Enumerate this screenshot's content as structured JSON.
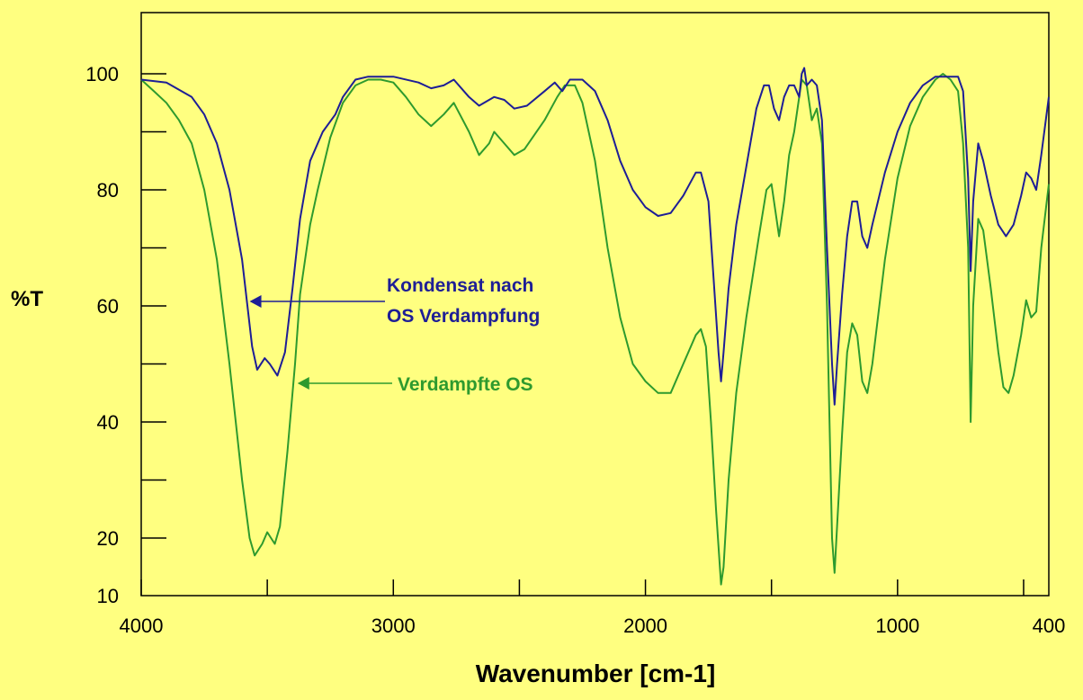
{
  "chart_data": {
    "type": "line",
    "xlabel": "Wavenumber [cm-1]",
    "ylabel": "%T",
    "xlim": [
      4000,
      400
    ],
    "ylim": [
      10,
      110
    ],
    "x_reversed": true,
    "x_ticks": [
      4000,
      3000,
      2000,
      1000,
      400
    ],
    "y_ticks": [
      100,
      80,
      60,
      40,
      20,
      10
    ],
    "grid": false,
    "background_color": "#FFFF80",
    "series": [
      {
        "name": "Kondensat nach OS Verdampfung",
        "color": "#1E1E96",
        "points": [
          [
            4000,
            99
          ],
          [
            3900,
            98.5
          ],
          [
            3800,
            96
          ],
          [
            3750,
            93
          ],
          [
            3700,
            88
          ],
          [
            3650,
            80
          ],
          [
            3600,
            68
          ],
          [
            3560,
            53
          ],
          [
            3540,
            49
          ],
          [
            3510,
            51
          ],
          [
            3490,
            50
          ],
          [
            3460,
            48
          ],
          [
            3430,
            52
          ],
          [
            3400,
            63
          ],
          [
            3370,
            75
          ],
          [
            3330,
            85
          ],
          [
            3280,
            90
          ],
          [
            3230,
            93
          ],
          [
            3200,
            96
          ],
          [
            3150,
            99
          ],
          [
            3100,
            99.5
          ],
          [
            3000,
            99.5
          ],
          [
            2900,
            98.5
          ],
          [
            2850,
            97.5
          ],
          [
            2800,
            98
          ],
          [
            2760,
            99
          ],
          [
            2700,
            96
          ],
          [
            2660,
            94.5
          ],
          [
            2600,
            96
          ],
          [
            2560,
            95.5
          ],
          [
            2520,
            94
          ],
          [
            2470,
            94.5
          ],
          [
            2400,
            97
          ],
          [
            2360,
            98.5
          ],
          [
            2330,
            97
          ],
          [
            2300,
            99
          ],
          [
            2250,
            99
          ],
          [
            2200,
            97
          ],
          [
            2150,
            92
          ],
          [
            2100,
            85
          ],
          [
            2050,
            80
          ],
          [
            2000,
            77
          ],
          [
            1950,
            75.5
          ],
          [
            1900,
            76
          ],
          [
            1850,
            79
          ],
          [
            1800,
            83
          ],
          [
            1780,
            83
          ],
          [
            1750,
            78
          ],
          [
            1730,
            65
          ],
          [
            1710,
            52
          ],
          [
            1700,
            47
          ],
          [
            1690,
            52
          ],
          [
            1670,
            63
          ],
          [
            1640,
            74
          ],
          [
            1600,
            84
          ],
          [
            1560,
            94
          ],
          [
            1530,
            98
          ],
          [
            1510,
            98
          ],
          [
            1490,
            94
          ],
          [
            1470,
            92
          ],
          [
            1450,
            96
          ],
          [
            1430,
            98
          ],
          [
            1410,
            98
          ],
          [
            1390,
            96
          ],
          [
            1380,
            100
          ],
          [
            1370,
            101
          ],
          [
            1360,
            98
          ],
          [
            1340,
            99
          ],
          [
            1320,
            98
          ],
          [
            1300,
            92
          ],
          [
            1280,
            70
          ],
          [
            1260,
            50
          ],
          [
            1250,
            43
          ],
          [
            1240,
            50
          ],
          [
            1220,
            62
          ],
          [
            1200,
            72
          ],
          [
            1180,
            78
          ],
          [
            1160,
            78
          ],
          [
            1140,
            72
          ],
          [
            1120,
            70
          ],
          [
            1100,
            74
          ],
          [
            1050,
            83
          ],
          [
            1000,
            90
          ],
          [
            950,
            95
          ],
          [
            900,
            98
          ],
          [
            850,
            99.5
          ],
          [
            800,
            99.5
          ],
          [
            760,
            99.5
          ],
          [
            740,
            97
          ],
          [
            720,
            82
          ],
          [
            710,
            66
          ],
          [
            700,
            78
          ],
          [
            680,
            88
          ],
          [
            660,
            85
          ],
          [
            630,
            79
          ],
          [
            600,
            74
          ],
          [
            570,
            72
          ],
          [
            540,
            74
          ],
          [
            510,
            79
          ],
          [
            490,
            83
          ],
          [
            470,
            82
          ],
          [
            450,
            80
          ],
          [
            430,
            86
          ],
          [
            400,
            96
          ]
        ]
      },
      {
        "name": "Verdampfte OS",
        "color": "#2E9A2E",
        "points": [
          [
            4000,
            99
          ],
          [
            3950,
            97
          ],
          [
            3900,
            95
          ],
          [
            3850,
            92
          ],
          [
            3800,
            88
          ],
          [
            3750,
            80
          ],
          [
            3700,
            68
          ],
          [
            3650,
            50
          ],
          [
            3600,
            30
          ],
          [
            3570,
            20
          ],
          [
            3550,
            17
          ],
          [
            3520,
            19
          ],
          [
            3500,
            21
          ],
          [
            3470,
            19
          ],
          [
            3450,
            22
          ],
          [
            3420,
            35
          ],
          [
            3390,
            50
          ],
          [
            3370,
            62
          ],
          [
            3330,
            74
          ],
          [
            3300,
            80
          ],
          [
            3250,
            89
          ],
          [
            3200,
            95
          ],
          [
            3150,
            98
          ],
          [
            3100,
            99
          ],
          [
            3050,
            99
          ],
          [
            3000,
            98.5
          ],
          [
            2950,
            96
          ],
          [
            2900,
            93
          ],
          [
            2850,
            91
          ],
          [
            2800,
            93
          ],
          [
            2760,
            95
          ],
          [
            2700,
            90
          ],
          [
            2660,
            86
          ],
          [
            2620,
            88
          ],
          [
            2600,
            90
          ],
          [
            2560,
            88
          ],
          [
            2520,
            86
          ],
          [
            2480,
            87
          ],
          [
            2400,
            92
          ],
          [
            2350,
            96
          ],
          [
            2320,
            98
          ],
          [
            2280,
            98
          ],
          [
            2250,
            95
          ],
          [
            2200,
            85
          ],
          [
            2150,
            70
          ],
          [
            2100,
            58
          ],
          [
            2050,
            50
          ],
          [
            2000,
            47
          ],
          [
            1950,
            45
          ],
          [
            1900,
            45
          ],
          [
            1850,
            50
          ],
          [
            1800,
            55
          ],
          [
            1780,
            56
          ],
          [
            1760,
            53
          ],
          [
            1740,
            40
          ],
          [
            1720,
            25
          ],
          [
            1700,
            12
          ],
          [
            1690,
            15
          ],
          [
            1670,
            30
          ],
          [
            1640,
            45
          ],
          [
            1600,
            58
          ],
          [
            1550,
            72
          ],
          [
            1520,
            80
          ],
          [
            1500,
            81
          ],
          [
            1480,
            75
          ],
          [
            1470,
            72
          ],
          [
            1450,
            78
          ],
          [
            1430,
            86
          ],
          [
            1410,
            90
          ],
          [
            1390,
            96
          ],
          [
            1380,
            99
          ],
          [
            1360,
            98
          ],
          [
            1340,
            92
          ],
          [
            1320,
            94
          ],
          [
            1300,
            88
          ],
          [
            1280,
            60
          ],
          [
            1260,
            20
          ],
          [
            1250,
            14
          ],
          [
            1240,
            22
          ],
          [
            1220,
            38
          ],
          [
            1200,
            52
          ],
          [
            1180,
            57
          ],
          [
            1160,
            55
          ],
          [
            1140,
            47
          ],
          [
            1120,
            45
          ],
          [
            1100,
            50
          ],
          [
            1050,
            68
          ],
          [
            1000,
            82
          ],
          [
            950,
            91
          ],
          [
            900,
            96
          ],
          [
            850,
            99
          ],
          [
            820,
            100
          ],
          [
            790,
            99
          ],
          [
            760,
            97
          ],
          [
            740,
            88
          ],
          [
            720,
            70
          ],
          [
            710,
            40
          ],
          [
            700,
            60
          ],
          [
            680,
            75
          ],
          [
            660,
            73
          ],
          [
            630,
            63
          ],
          [
            600,
            52
          ],
          [
            580,
            46
          ],
          [
            560,
            45
          ],
          [
            540,
            48
          ],
          [
            510,
            55
          ],
          [
            490,
            61
          ],
          [
            470,
            58
          ],
          [
            450,
            59
          ],
          [
            430,
            70
          ],
          [
            400,
            81
          ]
        ]
      }
    ],
    "annotations": [
      {
        "lines": [
          "Kondensat nach",
          "OS Verdampfung"
        ],
        "color": "#1E1E96",
        "arrow_target": [
          3570,
          61
        ]
      },
      {
        "lines": [
          "Verdampfte OS"
        ],
        "color": "#2E9A2E",
        "arrow_target": [
          3380,
          48
        ]
      }
    ]
  }
}
